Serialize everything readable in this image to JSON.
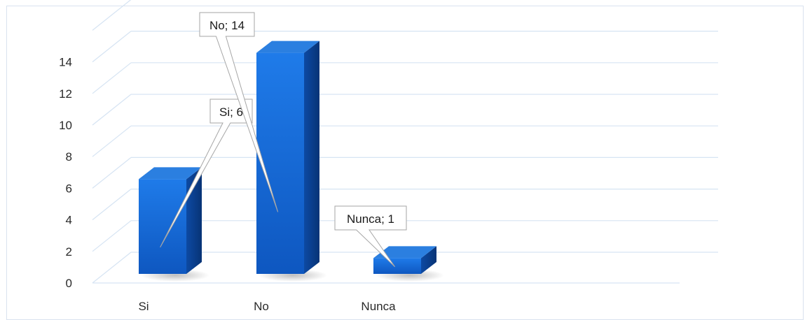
{
  "chart_data": {
    "type": "bar",
    "categories": [
      "Si",
      "No",
      "Nunca"
    ],
    "values": [
      6,
      14,
      1
    ],
    "data_labels": [
      "Si; 6",
      "No; 14",
      "Nunca; 1"
    ],
    "title": "",
    "xlabel": "",
    "ylabel": "",
    "ylim": [
      0,
      14
    ],
    "yticks": [
      0,
      2,
      4,
      6,
      8,
      10,
      12,
      14
    ],
    "grid": true,
    "legend": "none",
    "style": "3d-column",
    "colors": {
      "bar_front": "#1560c8",
      "bar_front_light": "#1f78e6",
      "bar_side": "#0a3f8c",
      "bar_top": "#2b7fe0",
      "grid": "#d6e4f3"
    }
  }
}
